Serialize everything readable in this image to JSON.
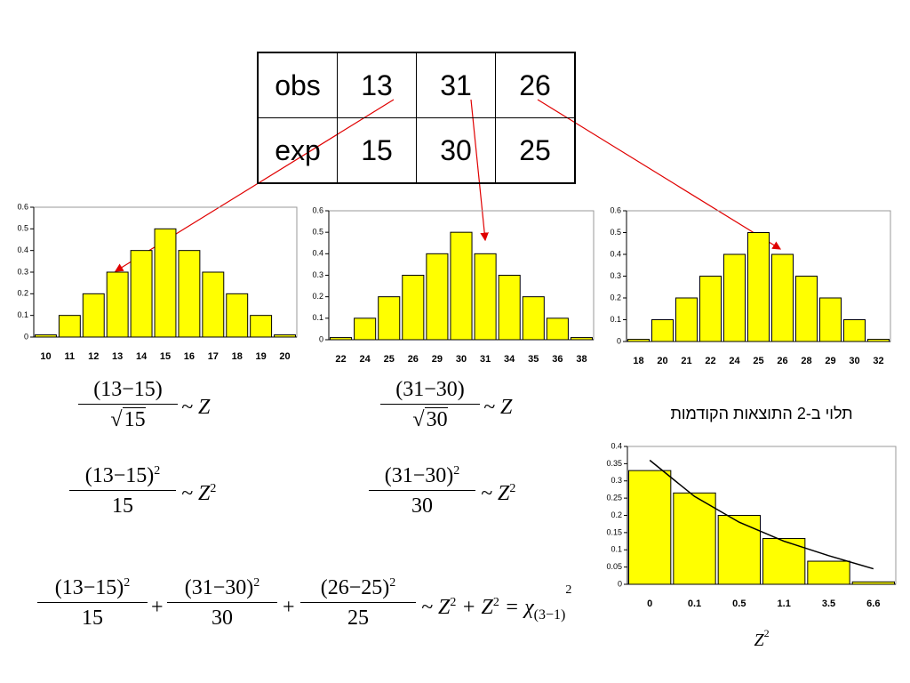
{
  "table": {
    "rows": [
      [
        "obs",
        "13",
        "31",
        "26"
      ],
      [
        "exp",
        "15",
        "30",
        "25"
      ]
    ]
  },
  "chart_data": [
    {
      "type": "bar",
      "categories": [
        "10",
        "11",
        "12",
        "13",
        "14",
        "15",
        "16",
        "17",
        "18",
        "19",
        "20"
      ],
      "values": [
        0.01,
        0.1,
        0.2,
        0.3,
        0.4,
        0.5,
        0.4,
        0.3,
        0.2,
        0.1,
        0.01
      ],
      "color": "#ffff00",
      "ylim": [
        0,
        0.6
      ],
      "yticks": [
        0,
        0.1,
        0.2,
        0.3,
        0.4,
        0.5,
        0.6
      ]
    },
    {
      "type": "bar",
      "categories": [
        "22",
        "24",
        "25",
        "26",
        "29",
        "30",
        "31",
        "34",
        "35",
        "36",
        "38"
      ],
      "values": [
        0.01,
        0.1,
        0.2,
        0.3,
        0.4,
        0.5,
        0.4,
        0.3,
        0.2,
        0.1,
        0.01
      ],
      "color": "#ffff00",
      "ylim": [
        0,
        0.6
      ],
      "yticks": [
        0,
        0.1,
        0.2,
        0.3,
        0.4,
        0.5,
        0.6
      ]
    },
    {
      "type": "bar",
      "categories": [
        "18",
        "20",
        "21",
        "22",
        "24",
        "25",
        "26",
        "28",
        "29",
        "30",
        "32"
      ],
      "values": [
        0.01,
        0.1,
        0.2,
        0.3,
        0.4,
        0.5,
        0.4,
        0.3,
        0.2,
        0.1,
        0.01
      ],
      "color": "#ffff00",
      "ylim": [
        0,
        0.6
      ],
      "yticks": [
        0,
        0.1,
        0.2,
        0.3,
        0.4,
        0.5,
        0.6
      ]
    },
    {
      "type": "bar",
      "title": "תלוי ב-2 התוצאות הקודמות",
      "x_label": "Z",
      "x_label_sup": "2",
      "categories": [
        "0",
        "0.1",
        "0.5",
        "1.1",
        "3.5",
        "6.6"
      ],
      "values": [
        0.33,
        0.265,
        0.2,
        0.133,
        0.067,
        0.007
      ],
      "color": "#ffff00",
      "curve_values": [
        0.36,
        0.255,
        0.18,
        0.125,
        0.083,
        0.045
      ],
      "curve_color": "#000000",
      "ylim": [
        0,
        0.4
      ],
      "yticks": [
        0,
        0.05,
        0.1,
        0.15,
        0.2,
        0.25,
        0.3,
        0.35,
        0.4
      ]
    }
  ],
  "formulas": [
    {
      "num": "(13−15)",
      "den": "15",
      "rhs": "~ Z"
    },
    {
      "num": "(31−30)",
      "den": "30",
      "rhs": "~ Z"
    },
    {
      "num": "(13−15)",
      "num_sup": "2",
      "den": "15",
      "rhs": "~ Z",
      "rhs_sup": "2"
    },
    {
      "num": "(31−30)",
      "num_sup": "2",
      "den": "30",
      "rhs": "~ Z",
      "rhs_sup": "2"
    }
  ],
  "sum_formula": {
    "terms": [
      {
        "num": "(13−15)",
        "sup": "2",
        "den": "15"
      },
      {
        "num": "(31−30)",
        "sup": "2",
        "den": "30"
      },
      {
        "num": "(26−25)",
        "sup": "2",
        "den": "25"
      }
    ],
    "plus": "+",
    "tail": [
      "~ Z",
      "2",
      "+ Z",
      "2",
      "= χ",
      "(3−1)",
      "2"
    ]
  }
}
